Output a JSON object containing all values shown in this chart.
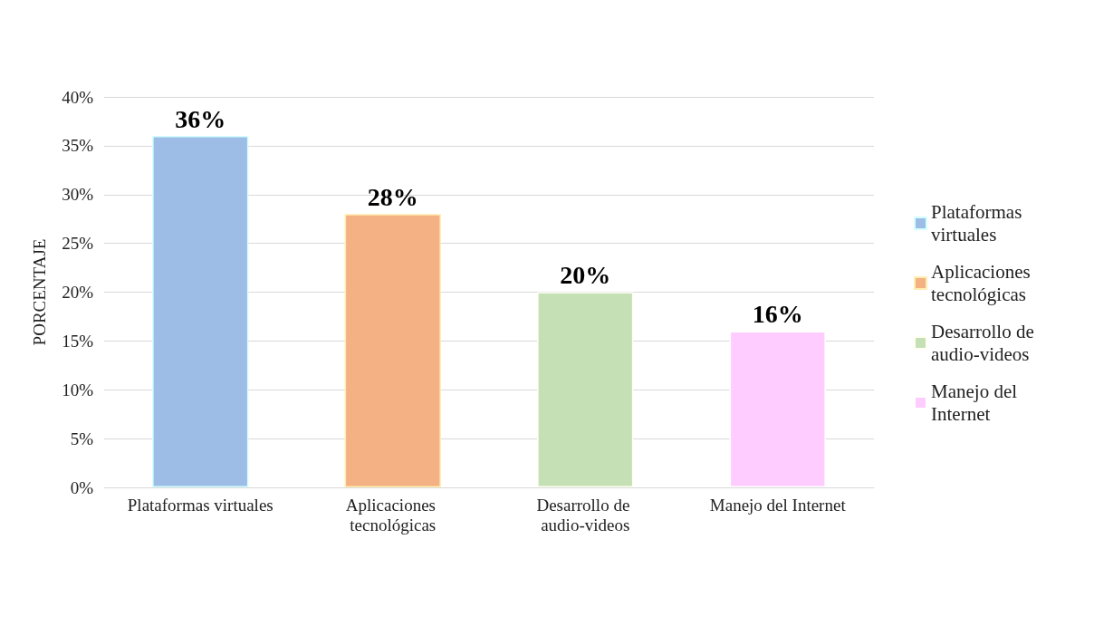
{
  "chart_data": {
    "type": "bar",
    "ylabel": "PORCENTAJE",
    "categories": [
      "Plataformas virtuales",
      "Aplicaciones tecnológicas",
      "Desarrollo de audio-videos",
      "Manejo del Internet"
    ],
    "series": [
      {
        "name": "Plataformas virtuales",
        "color": "#9dbde6",
        "values": [
          36,
          null,
          null,
          null
        ],
        "value_labels": [
          "36%",
          null,
          null,
          null
        ]
      },
      {
        "name": "Aplicaciones tecnológicas",
        "color": "#f4b183",
        "values": [
          null,
          28,
          null,
          null
        ],
        "value_labels": [
          null,
          "28%",
          null,
          null
        ]
      },
      {
        "name": "Desarrollo de audio-videos",
        "color": "#c5e0b4",
        "values": [
          null,
          null,
          20,
          null
        ],
        "value_labels": [
          null,
          null,
          "20%",
          null
        ]
      },
      {
        "name": "Manejo del Internet",
        "color": "#ffccff",
        "values": [
          null,
          null,
          null,
          16
        ],
        "value_labels": [
          null,
          null,
          null,
          "16%"
        ]
      }
    ],
    "stacked": true,
    "ylim": [
      0,
      40
    ],
    "yticks": [
      {
        "value": 0,
        "label": "0%"
      },
      {
        "value": 5,
        "label": "5%"
      },
      {
        "value": 10,
        "label": "10%"
      },
      {
        "value": 15,
        "label": "15%"
      },
      {
        "value": 20,
        "label": "20%"
      },
      {
        "value": 25,
        "label": "25%"
      },
      {
        "value": 30,
        "label": "30%"
      },
      {
        "value": 35,
        "label": "35%"
      },
      {
        "value": 40,
        "label": "40%"
      }
    ],
    "grid": "y",
    "legend": "right"
  }
}
